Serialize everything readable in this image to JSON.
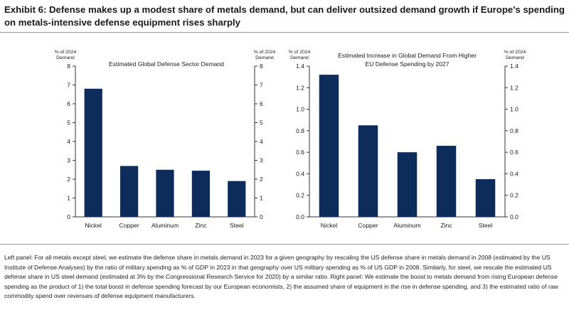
{
  "title": "Exhibit 6: Defense makes up a modest share of metals demand, but can deliver outsized demand growth if Europe's spending on metals-intensive defense equipment rises sharply",
  "footnote": "Left panel: For all metals except steel, we estimate the defense share in metals demand in 2023 for a given geography by rescaling the US defense share in metals demand in 2008 (estimated by the US Institute of Defense Analyses) by the ratio of military spending as % of GDP in 2023 in that geography over US military spending as % of US GDP in 2008. Similarly, for steel, we rescale the estimated US defense share in US steel demand (estimated at 3% by the Congressional Research Service for 2020) by a similar ratio. Right panel: We estimate the boost to metals demand from rising European defense spending as the product of 1) the total boost in defense spending forecast by our European economists, 2) the assumed share of equipment in the rise in defense spending, and 3) the estimated ratio of raw commodity spend over revenues of defense equipment manufacturers.",
  "colors": {
    "bar": "#0d2b5b",
    "axis": "#333333",
    "rule": "#9a9a9a"
  },
  "chart_data": [
    {
      "type": "bar",
      "title": "Estimated Global Defense Sector Demand",
      "ylabel_left": "% of 2024 Demand",
      "ylabel_right": "% of 2024 Demand",
      "categories": [
        "Nickel",
        "Copper",
        "Aluminum",
        "Zinc",
        "Steel"
      ],
      "values": [
        6.8,
        2.7,
        2.5,
        2.45,
        1.9
      ],
      "ylim": [
        0,
        8
      ],
      "yticks": [
        0,
        1,
        2,
        3,
        4,
        5,
        6,
        7,
        8
      ],
      "tick_decimals": 0,
      "grid": false
    },
    {
      "type": "bar",
      "title": "Estimated Increase in Global Demand From Higher EU Defense Spending by 2027",
      "ylabel_left": "% of 2024 Demand",
      "ylabel_right": "% of 2024 Demand",
      "categories": [
        "Nickel",
        "Copper",
        "Aluminum",
        "Zinc",
        "Steel"
      ],
      "values": [
        1.32,
        0.85,
        0.6,
        0.66,
        0.35
      ],
      "ylim": [
        0,
        1.4
      ],
      "yticks": [
        0,
        0.2,
        0.4,
        0.6,
        0.8,
        1.0,
        1.2,
        1.4
      ],
      "tick_decimals": 1,
      "grid": false
    }
  ]
}
